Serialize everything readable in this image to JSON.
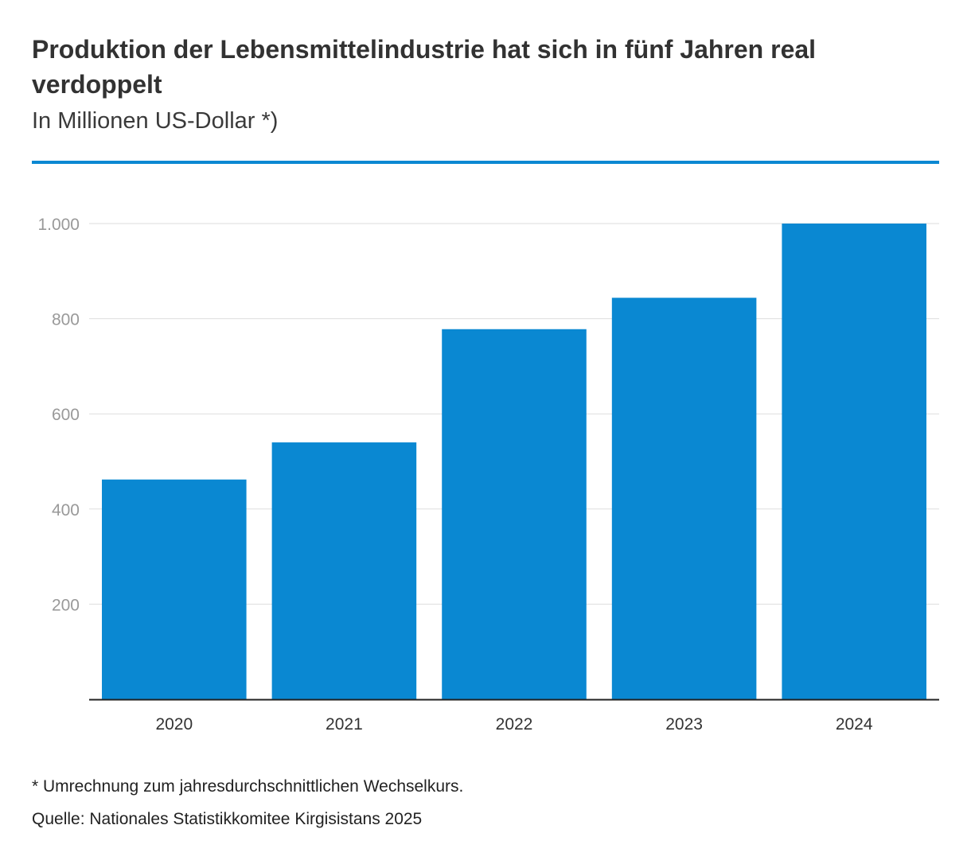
{
  "header": {
    "title": "Produktion der Lebensmittelindustrie hat sich in fünf Jahren real verdoppelt",
    "subtitle": "In Millionen US-Dollar *)"
  },
  "footer": {
    "note": "* Umrechnung zum jahresdurchschnittlichen Wechselkurs.",
    "source": "Quelle: Nationales Statistikkomitee Kirgisistans 2025"
  },
  "colors": {
    "bar": "#0a88d2",
    "accent_rule": "#0a88d2",
    "grid": "#dddddd",
    "tick_text": "#999999",
    "axis": "#222222"
  },
  "chart_data": {
    "type": "bar",
    "title": "Produktion der Lebensmittelindustrie hat sich in fünf Jahren real verdoppelt",
    "subtitle": "In Millionen US-Dollar *)",
    "xlabel": "",
    "ylabel": "",
    "categories": [
      "2020",
      "2021",
      "2022",
      "2023",
      "2024"
    ],
    "values": [
      462,
      540,
      778,
      844,
      1000
    ],
    "ylim": [
      0,
      1000
    ],
    "yticks": [
      {
        "value": 200,
        "label": "200"
      },
      {
        "value": 400,
        "label": "400"
      },
      {
        "value": 600,
        "label": "600"
      },
      {
        "value": 800,
        "label": "800"
      },
      {
        "value": 1000,
        "label": "1.000"
      }
    ],
    "grid": true,
    "legend": "none"
  }
}
